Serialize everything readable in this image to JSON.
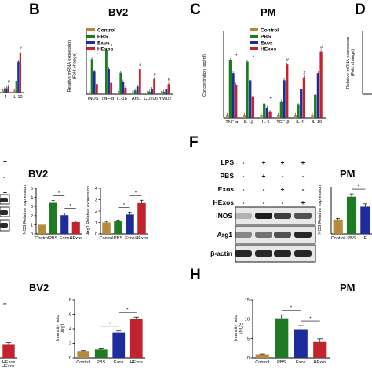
{
  "colors": {
    "Control": "#b58a3c",
    "PBS": "#1e7a23",
    "Exos": "#1c2c9c",
    "HExos": "#c1242e"
  },
  "panels": {
    "B": {
      "letter": "B",
      "title": "BV2"
    },
    "C": {
      "letter": "C",
      "title": "PM"
    },
    "D": {
      "letter": "D"
    },
    "E": {
      "title": "BV2"
    },
    "F": {
      "letter": "F",
      "title": "PM"
    },
    "G": {
      "title": "BV2"
    },
    "H": {
      "letter": "H",
      "title": "PM"
    }
  },
  "legend": [
    "Control",
    "PBS",
    "Exos",
    "HExos"
  ],
  "blot_F": {
    "treatments": [
      "LPS",
      "PBS",
      "Exos",
      "HExos"
    ],
    "signs": [
      [
        "-",
        "+",
        "+",
        "+"
      ],
      [
        "-",
        "+",
        "-",
        "-"
      ],
      [
        "-",
        "-",
        "+",
        "-"
      ],
      [
        "-",
        "-",
        "-",
        "+"
      ]
    ],
    "bands": [
      "iNOS",
      "Arg1",
      "β-actin"
    ]
  },
  "chart_data": [
    {
      "id": "A-partial",
      "type": "bar",
      "categories": [
        "4",
        "IL-10"
      ],
      "series": [
        {
          "name": "Control",
          "values": [
            0.2,
            0.2
          ]
        },
        {
          "name": "PBS",
          "values": [
            0.3,
            1.1
          ]
        },
        {
          "name": "Exos",
          "values": [
            0.4,
            2.9
          ]
        },
        {
          "name": "HExos",
          "values": [
            0.6,
            3.7
          ]
        }
      ],
      "ylim": [
        0,
        5
      ],
      "marks": [
        "#",
        "#"
      ]
    },
    {
      "id": "B",
      "type": "bar",
      "title": "BV2",
      "ylabel": "Relative mRNA expression\n(Fold change)",
      "categories": [
        "iNOS",
        "TNF-α",
        "IL-1β",
        "Arg1",
        "CD206",
        "YM1/2"
      ],
      "series": [
        {
          "name": "Control",
          "values": [
            1,
            1,
            1,
            1,
            1,
            1
          ]
        },
        {
          "name": "PBS",
          "values": [
            28,
            35,
            17,
            3,
            2,
            2
          ]
        },
        {
          "name": "Exos",
          "values": [
            18,
            20,
            10,
            6,
            4,
            4
          ]
        },
        {
          "name": "HExos",
          "values": [
            8,
            9,
            5,
            20,
            12,
            8
          ]
        }
      ],
      "ylim": [
        0,
        50
      ],
      "yticks": [
        0,
        10,
        20,
        30,
        40,
        50
      ],
      "marks": [
        "*",
        "*",
        "*",
        "#",
        "#",
        "#"
      ]
    },
    {
      "id": "C",
      "type": "bar",
      "title": "PM",
      "ylabel": "Concentration (pg/ml)",
      "categories": [
        "TNF-α",
        "IL-1β",
        "IL-6",
        "TGF-β",
        "IL-4",
        "IL-10"
      ],
      "series": [
        {
          "name": "Control",
          "values": [
            20,
            20,
            20,
            20,
            20,
            20
          ]
        },
        {
          "name": "PBS",
          "values": [
            400,
            390,
            100,
            110,
            90,
            160
          ]
        },
        {
          "name": "Exos",
          "values": [
            310,
            260,
            70,
            260,
            200,
            310
          ]
        },
        {
          "name": "HExos",
          "values": [
            230,
            150,
            40,
            370,
            280,
            460
          ]
        }
      ],
      "ylim": [
        0,
        600
      ],
      "yticks": [
        0,
        100,
        200,
        300,
        400,
        500,
        600
      ],
      "marks": [
        "*",
        "*",
        "*",
        "#",
        "#",
        "#"
      ]
    },
    {
      "id": "E-iNOS",
      "type": "bar",
      "ylabel": "iNOS Relative expression",
      "categories": [
        "Control",
        "PBS",
        "Exos",
        "HExos"
      ],
      "values": [
        1,
        3.4,
        2.05,
        1.3
      ],
      "errors": [
        0.08,
        0.25,
        0.25,
        0.12
      ],
      "ylim": [
        0,
        5
      ],
      "yticks": [
        0,
        1,
        2,
        3,
        4,
        5
      ],
      "sig": [
        [
          1,
          2,
          "*"
        ],
        [
          2,
          3,
          "*"
        ]
      ]
    },
    {
      "id": "E-Arg1",
      "type": "bar",
      "ylabel": "Arg1 Relative expression",
      "categories": [
        "Control",
        "PBS",
        "Exos",
        "HExos"
      ],
      "values": [
        1,
        1.1,
        1.7,
        2.7
      ],
      "errors": [
        0.1,
        0.12,
        0.2,
        0.25
      ],
      "ylim": [
        0,
        4
      ],
      "yticks": [
        0,
        1,
        2,
        3,
        4
      ],
      "sig": [
        [
          1,
          2,
          "*"
        ],
        [
          2,
          3,
          "*"
        ]
      ]
    },
    {
      "id": "F-iNOS",
      "type": "bar",
      "ylabel": "iNOS Relative expression",
      "categories": [
        "Control",
        "PBS",
        "E"
      ],
      "values": [
        1,
        2.6,
        1.9
      ],
      "errors": [
        0.08,
        0.2,
        0.2
      ],
      "ylim": [
        0,
        3.3
      ],
      "sig": [
        [
          1,
          2,
          "*"
        ]
      ]
    },
    {
      "id": "G-Arg1",
      "type": "bar",
      "ylabel": "Intensity ratio\nArg1",
      "categories": [
        "Control",
        "PBS",
        "Exos",
        "HExos"
      ],
      "values": [
        0.95,
        1.15,
        3.5,
        5.3
      ],
      "errors": [
        0.05,
        0.1,
        0.2,
        0.3
      ],
      "ylim": [
        0,
        8
      ],
      "yticks": [
        0,
        2,
        4,
        6,
        8
      ],
      "sig": [
        [
          1,
          2,
          "*"
        ],
        [
          2,
          3,
          "*"
        ]
      ]
    },
    {
      "id": "H-iNOS",
      "type": "bar",
      "ylabel": "Intensity ratio\niNOS",
      "categories": [
        "Control",
        "PBS",
        "Exos",
        "HExos"
      ],
      "values": [
        0.9,
        10.2,
        7.4,
        4.1
      ],
      "errors": [
        0.1,
        0.9,
        0.9,
        0.8
      ],
      "ylim": [
        0,
        15
      ],
      "yticks": [
        0,
        5,
        10,
        15
      ],
      "sig": [
        [
          1,
          2,
          "*"
        ],
        [
          2,
          3,
          "*"
        ]
      ]
    },
    {
      "id": "G-partial",
      "type": "bar",
      "categories": [
        "HExos"
      ],
      "values": [
        1.9
      ],
      "errors": [
        0.2
      ],
      "ylim": [
        0,
        8
      ],
      "sig": [
        [
          0,
          0,
          "**"
        ]
      ]
    }
  ]
}
